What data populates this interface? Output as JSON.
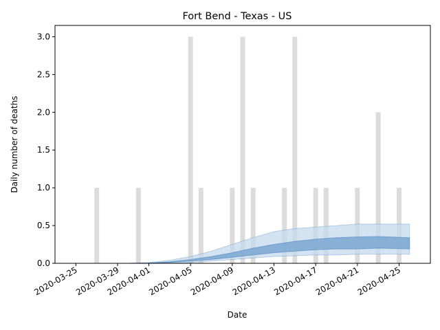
{
  "chart_data": {
    "type": "bar",
    "title": "Fort Bend - Texas - US",
    "xlabel": "Date",
    "ylabel": "Daily number of deaths",
    "ylim": [
      0,
      3.15
    ],
    "xlim_dates": [
      "2020-03-23",
      "2020-04-28"
    ],
    "yticks": [
      "0.0",
      "0.5",
      "1.0",
      "1.5",
      "2.0",
      "2.5",
      "3.0"
    ],
    "xticks": [
      "2020-03-25",
      "2020-03-29",
      "2020-04-01",
      "2020-04-05",
      "2020-04-09",
      "2020-04-13",
      "2020-04-17",
      "2020-04-21",
      "2020-04-25"
    ],
    "grid": false,
    "colors": {
      "bars": "#dcdcdc",
      "band_outer": "#c6d9ec",
      "band_inner": "#7faad3",
      "band_edge": "#4f86be"
    },
    "daily_deaths": {
      "name": "Daily deaths",
      "dates": [
        "2020-03-27",
        "2020-03-31",
        "2020-04-05",
        "2020-04-06",
        "2020-04-09",
        "2020-04-10",
        "2020-04-11",
        "2020-04-14",
        "2020-04-15",
        "2020-04-17",
        "2020-04-18",
        "2020-04-21",
        "2020-04-23",
        "2020-04-25"
      ],
      "values": [
        1,
        1,
        3,
        1,
        1,
        3,
        1,
        1,
        3,
        1,
        1,
        1,
        2,
        1
      ]
    },
    "estimate_bands": {
      "dates": [
        "2020-03-30",
        "2020-04-01",
        "2020-04-03",
        "2020-04-05",
        "2020-04-07",
        "2020-04-09",
        "2020-04-11",
        "2020-04-13",
        "2020-04-15",
        "2020-04-17",
        "2020-04-19",
        "2020-04-21",
        "2020-04-23",
        "2020-04-26"
      ],
      "outer_upper": [
        0.0,
        0.01,
        0.04,
        0.09,
        0.16,
        0.25,
        0.34,
        0.42,
        0.46,
        0.48,
        0.5,
        0.52,
        0.52,
        0.52
      ],
      "outer_lower": [
        0.0,
        0.0,
        0.0,
        0.01,
        0.03,
        0.05,
        0.07,
        0.09,
        0.1,
        0.11,
        0.11,
        0.12,
        0.12,
        0.12
      ],
      "inner_upper": [
        0.0,
        0.005,
        0.02,
        0.05,
        0.09,
        0.14,
        0.2,
        0.25,
        0.29,
        0.32,
        0.34,
        0.35,
        0.355,
        0.34
      ],
      "inner_lower": [
        0.0,
        0.0,
        0.01,
        0.03,
        0.05,
        0.08,
        0.11,
        0.14,
        0.16,
        0.18,
        0.19,
        0.19,
        0.2,
        0.19
      ]
    }
  }
}
